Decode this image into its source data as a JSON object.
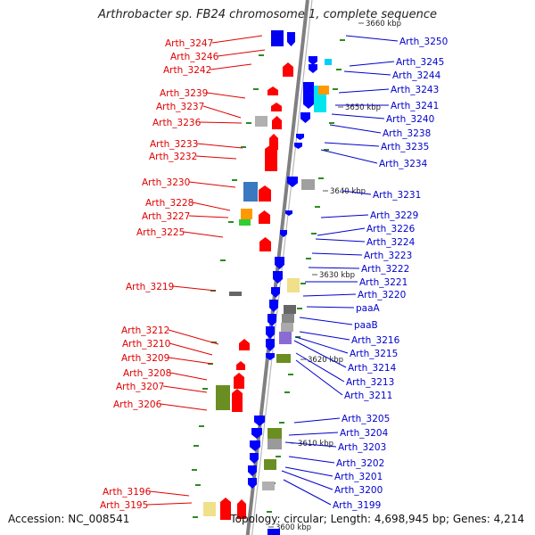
{
  "title": "Arthrobacter sp. FB24 chromosome 1, complete sequence",
  "footer": {
    "accession": "Accession: NC_008541",
    "summary": "Topology: circular; Length: 4,698,945 bp; Genes: 4,214"
  },
  "colors": {
    "left_label": "#e00000",
    "right_label": "#0000cc",
    "forward_gene": "#ff0000",
    "reverse_gene": "#0000ff",
    "backbone": "#808080",
    "orf_mark": "#2e8b22"
  },
  "scale_ticks": [
    "3600 kbp",
    "3610 kbp",
    "3620 kbp",
    "3630 kbp",
    "3640 kbp",
    "3650 kbp",
    "3660 kbp"
  ],
  "left_labels": [
    "Arth_3247",
    "Arth_3246",
    "Arth_3242",
    "Arth_3239",
    "Arth_3237",
    "Arth_3236",
    "Arth_3233",
    "Arth_3232",
    "Arth_3230",
    "Arth_3228",
    "Arth_3227",
    "Arth_3225",
    "Arth_3219",
    "Arth_3212",
    "Arth_3210",
    "Arth_3209",
    "Arth_3208",
    "Arth_3207",
    "Arth_3206",
    "Arth_3196",
    "Arth_3195"
  ],
  "right_labels": [
    "Arth_3250",
    "Arth_3245",
    "Arth_3244",
    "Arth_3243",
    "Arth_3241",
    "Arth_3240",
    "Arth_3238",
    "Arth_3235",
    "Arth_3234",
    "Arth_3231",
    "Arth_3229",
    "Arth_3226",
    "Arth_3224",
    "Arth_3223",
    "Arth_3222",
    "Arth_3221",
    "Arth_3220",
    "paaA",
    "paaB",
    "Arth_3216",
    "Arth_3215",
    "Arth_3214",
    "Arth_3213",
    "Arth_3211",
    "Arth_3205",
    "Arth_3204",
    "Arth_3203",
    "Arth_3202",
    "Arth_3201",
    "Arth_3200",
    "Arth_3199"
  ]
}
